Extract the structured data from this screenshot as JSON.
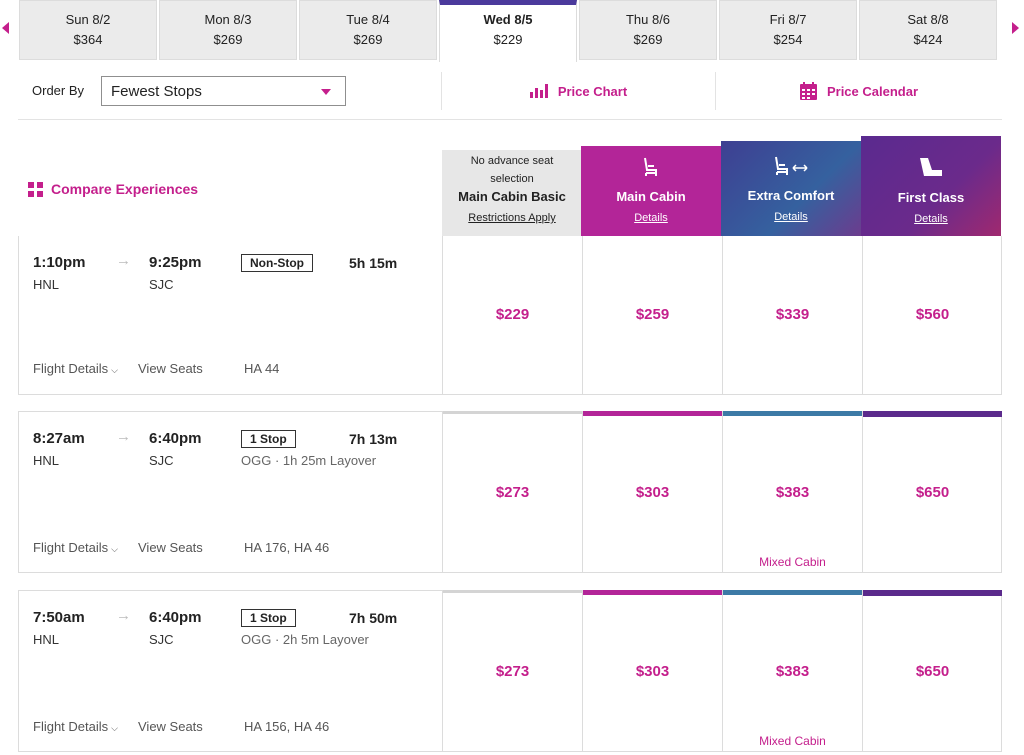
{
  "dates": [
    {
      "day": "Sun 8/2",
      "price": "$364"
    },
    {
      "day": "Mon 8/3",
      "price": "$269"
    },
    {
      "day": "Tue 8/4",
      "price": "$269"
    },
    {
      "day": "Wed 8/5",
      "price": "$229"
    },
    {
      "day": "Thu 8/6",
      "price": "$269"
    },
    {
      "day": "Fri 8/7",
      "price": "$254"
    },
    {
      "day": "Sat 8/8",
      "price": "$424"
    }
  ],
  "selected_date": "Wed 8/5",
  "toolbar": {
    "order_label": "Order By",
    "order_value": "Fewest Stops",
    "price_chart": "Price Chart",
    "price_calendar": "Price Calendar"
  },
  "compare_label": "Compare Experiences",
  "cabins": {
    "basic": {
      "note": "No advance seat selection",
      "name": "Main Cabin Basic",
      "link": "Restrictions Apply"
    },
    "main": {
      "name": "Main Cabin",
      "link": "Details"
    },
    "extra": {
      "name": "Extra Comfort",
      "link": "Details"
    },
    "first": {
      "name": "First Class",
      "link": "Details"
    }
  },
  "flights": [
    {
      "depart": "1:10pm",
      "arrive": "9:25pm",
      "from": "HNL",
      "to": "SJC",
      "stops": "Non-Stop",
      "duration": "5h 15m",
      "layover": "",
      "details": "Flight Details",
      "seats": "View Seats",
      "flight_numbers": "HA 44",
      "prices": {
        "basic": "$229",
        "main": "$259",
        "extra": "$339",
        "first": "$560"
      },
      "extra_note": ""
    },
    {
      "depart": "8:27am",
      "arrive": "6:40pm",
      "from": "HNL",
      "to": "SJC",
      "stops": "1 Stop",
      "duration": "7h 13m",
      "layover": "OGG · 1h 25m Layover",
      "details": "Flight Details",
      "seats": "View Seats",
      "flight_numbers": "HA 176, HA 46",
      "prices": {
        "basic": "$273",
        "main": "$303",
        "extra": "$383",
        "first": "$650"
      },
      "extra_note": "Mixed Cabin"
    },
    {
      "depart": "7:50am",
      "arrive": "6:40pm",
      "from": "HNL",
      "to": "SJC",
      "stops": "1 Stop",
      "duration": "7h 50m",
      "layover": "OGG · 2h 5m Layover",
      "details": "Flight Details",
      "seats": "View Seats",
      "flight_numbers": "HA 156, HA 46",
      "prices": {
        "basic": "$273",
        "main": "$303",
        "extra": "$383",
        "first": "$650"
      },
      "extra_note": "Mixed Cabin"
    }
  ],
  "colors": {
    "accent": "#c41f8c",
    "selected_tab": "#4b3a9c",
    "main_cabin": "#b32598",
    "extra_comfort": "#3c7aa6",
    "first_class": "#5b2a8c"
  },
  "icons": [
    "previous-dates-arrow",
    "next-dates-arrow",
    "dropdown-caret",
    "bar-chart-icon",
    "calendar-icon",
    "grid-icon",
    "seat-icon",
    "seat-extra-legroom-icon",
    "first-class-seat-icon",
    "route-arrow-icon",
    "chevron-down-icon"
  ]
}
